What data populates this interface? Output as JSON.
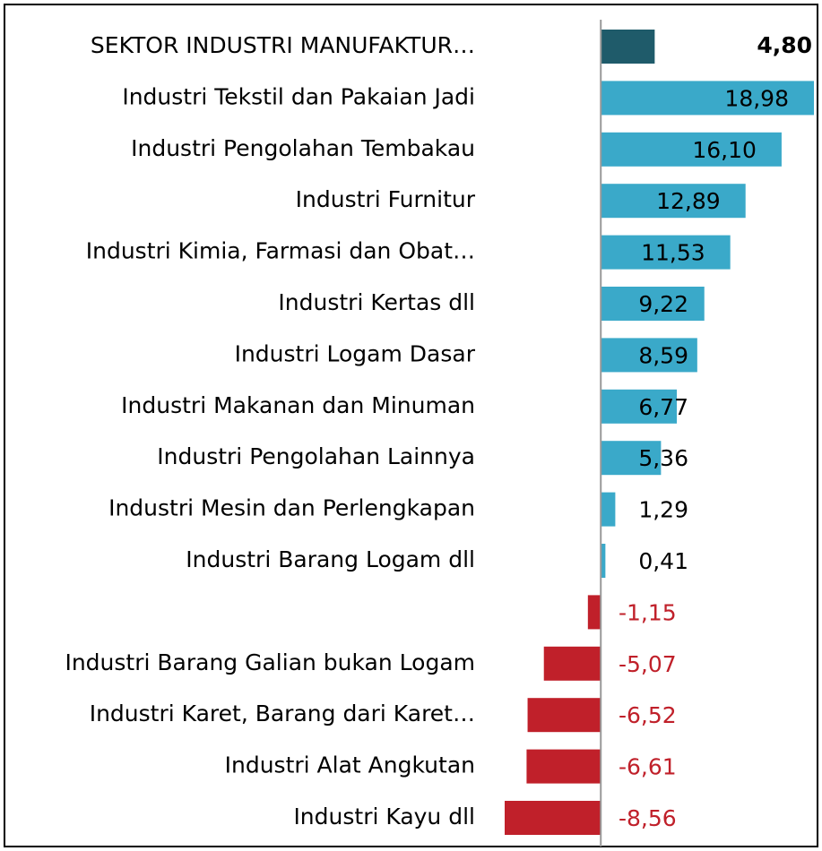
{
  "chart_data": {
    "type": "barh",
    "categories": [
      "SEKTOR INDUSTRI MANUFAKTUR…",
      "Industri Tekstil dan Pakaian Jadi",
      "Industri Pengolahan Tembakau",
      "Industri Furnitur",
      "Industri Kimia, Farmasi dan Obat…",
      "Industri Kertas dll",
      "Industri Logam Dasar",
      "Industri Makanan dan Minuman",
      "Industri Pengolahan Lainnya",
      "Industri Mesin dan Perlengkapan",
      "Industri Barang Logam dll",
      null,
      "Industri Barang Galian bukan Logam",
      "Industri Karet, Barang dari Karet…",
      "Industri Alat Angkutan",
      "Industri Kayu dll"
    ],
    "values": [
      4.8,
      18.98,
      16.1,
      12.89,
      11.53,
      9.22,
      8.59,
      6.77,
      5.36,
      1.29,
      0.41,
      -1.15,
      -5.07,
      -6.52,
      -6.61,
      -8.56
    ],
    "value_labels": [
      "4,80",
      "18,98",
      "16,10",
      "12,89",
      "11,53",
      "9,22",
      "8,59",
      "6,77",
      "5,36",
      "1,29",
      "0,41",
      "-1,15",
      "-5,07",
      "-6,52",
      "-6,61",
      "-8,56"
    ],
    "colors": [
      "#1f5b6a",
      "#3aa9c9",
      "#3aa9c9",
      "#3aa9c9",
      "#3aa9c9",
      "#3aa9c9",
      "#3aa9c9",
      "#3aa9c9",
      "#3aa9c9",
      "#3aa9c9",
      "#3aa9c9",
      "#c0202a",
      "#c0202a",
      "#c0202a",
      "#c0202a",
      "#c0202a"
    ]
  }
}
